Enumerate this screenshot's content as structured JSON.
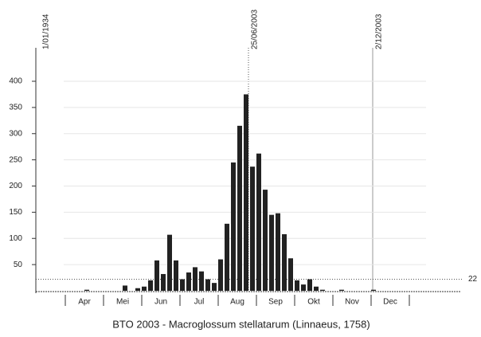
{
  "chart_data": {
    "type": "bar",
    "title": "BTO 2003 - Macroglossum stellatarum (Linnaeus, 1758)",
    "categories": [
      null,
      null,
      null,
      null,
      null,
      null,
      null,
      null,
      null,
      null,
      null,
      null,
      null,
      null,
      null,
      null,
      null,
      null,
      null,
      null,
      null,
      null,
      null,
      null,
      null,
      null,
      null,
      null,
      null,
      null,
      null,
      null,
      null,
      null,
      null,
      null,
      null,
      null,
      null,
      null,
      null,
      null,
      null,
      null,
      null,
      null,
      null,
      null,
      null,
      null,
      null,
      null
    ],
    "values": [
      0,
      0,
      0,
      0,
      0,
      0,
      2,
      0,
      0,
      0,
      0,
      0,
      10,
      0,
      5,
      8,
      20,
      58,
      32,
      107,
      58,
      22,
      35,
      45,
      37,
      22,
      15,
      60,
      128,
      245,
      315,
      375,
      237,
      262,
      193,
      145,
      148,
      108,
      62,
      20,
      12,
      22,
      8,
      2,
      0,
      0,
      2,
      0,
      0,
      0,
      0,
      2
    ],
    "color": "#222222",
    "months": [
      "Apr",
      "Mei",
      "Jun",
      "Jul",
      "Aug",
      "Sep",
      "Okt",
      "Nov",
      "Dec"
    ],
    "markers": [
      "1/01/1934",
      "25/06/2003",
      "2/12/2003"
    ],
    "reference_line": {
      "value": 22,
      "label": "22"
    },
    "ylim": [
      0,
      400
    ],
    "yticks": [
      50,
      100,
      150,
      200,
      250,
      300,
      350,
      400
    ],
    "grid": true
  }
}
